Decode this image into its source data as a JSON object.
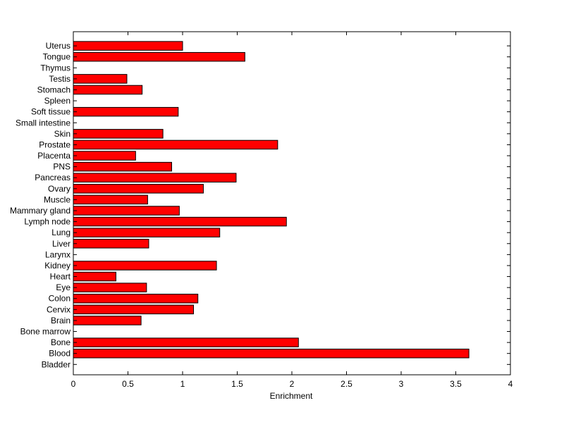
{
  "chart_data": {
    "type": "bar",
    "orientation": "horizontal",
    "categories": [
      "Bladder",
      "Blood",
      "Bone",
      "Bone marrow",
      "Brain",
      "Cervix",
      "Colon",
      "Eye",
      "Heart",
      "Kidney",
      "Larynx",
      "Liver",
      "Lung",
      "Lymph node",
      "Mammary gland",
      "Muscle",
      "Ovary",
      "Pancreas",
      "PNS",
      "Placenta",
      "Prostate",
      "Skin",
      "Small intestine",
      "Soft tissue",
      "Spleen",
      "Stomach",
      "Testis",
      "Thymus",
      "Tongue",
      "Uterus"
    ],
    "values": [
      0,
      3.62,
      2.06,
      0,
      0.62,
      1.1,
      1.14,
      0.67,
      0.39,
      1.31,
      0,
      0.69,
      1.34,
      1.95,
      0.97,
      0.68,
      1.19,
      1.49,
      0.9,
      0.57,
      1.87,
      0.82,
      0,
      0.96,
      0,
      0.63,
      0.49,
      0,
      1.57,
      1.0
    ],
    "xlabel": "Enrichment",
    "ylabel": "",
    "xlim": [
      0,
      4
    ],
    "xticks": [
      0,
      0.5,
      1,
      1.5,
      2,
      2.5,
      3,
      3.5,
      4
    ],
    "xtick_labels": [
      "0",
      "0.5",
      "1",
      "1.5",
      "2",
      "2.5",
      "3",
      "3.5",
      "4"
    ],
    "grid": false,
    "bar_color": "#ff0000",
    "bar_edge_color": "#000000"
  }
}
